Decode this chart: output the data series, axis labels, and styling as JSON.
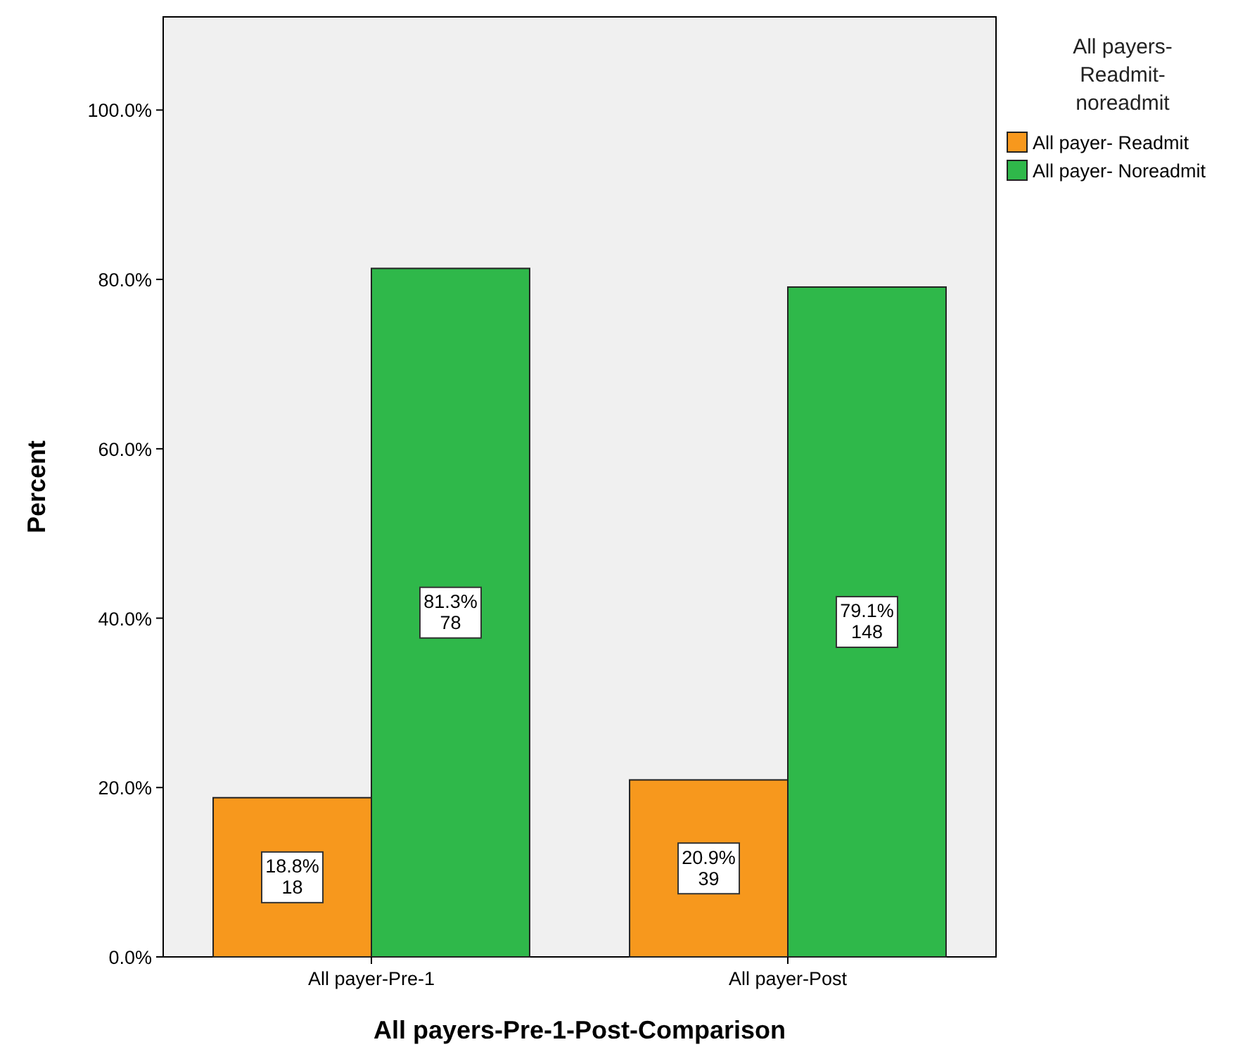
{
  "chart_data": {
    "type": "bar",
    "xlabel": "All payers-Pre-1-Post-Comparison",
    "ylabel": "Percent",
    "legend_title": "All payers-Readmit-noreadmit",
    "categories": [
      "All payer-Pre-1",
      "All payer-Post"
    ],
    "series": [
      {
        "name": "All payer- Readmit",
        "color": "#f7981d",
        "values": [
          18.8,
          20.9
        ],
        "value_labels": [
          "18.8%\n18",
          "20.9%\n39"
        ]
      },
      {
        "name": "All payer- Noreadmit",
        "color": "#2fb84a",
        "values": [
          81.3,
          79.1
        ],
        "value_labels": [
          "81.3%\n78",
          "79.1%\n148"
        ]
      }
    ],
    "ylim": [
      0,
      111
    ],
    "yticks": [
      {
        "value": 0,
        "label": "0.0%"
      },
      {
        "value": 20,
        "label": "20.0%"
      },
      {
        "value": 40,
        "label": "40.0%"
      },
      {
        "value": 60,
        "label": "60.0%"
      },
      {
        "value": 80,
        "label": "80.0%"
      },
      {
        "value": 100,
        "label": "100.0%"
      }
    ],
    "grid": false,
    "legend": "right"
  }
}
